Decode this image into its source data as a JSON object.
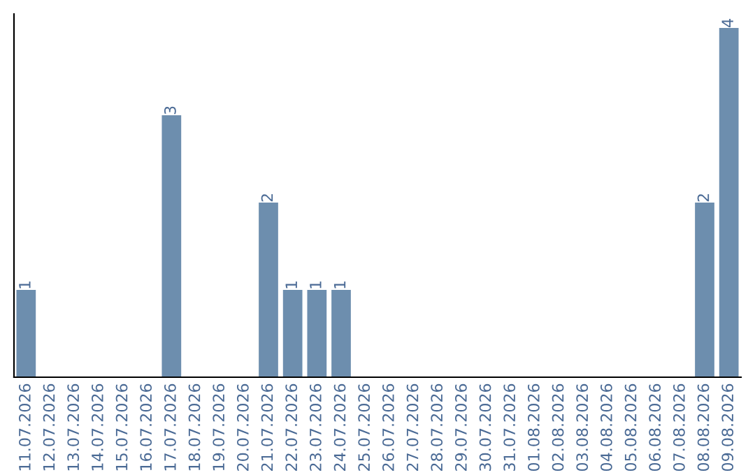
{
  "chart_data": {
    "type": "bar",
    "categories": [
      "11.07.2026",
      "12.07.2026",
      "13.07.2026",
      "14.07.2026",
      "15.07.2026",
      "16.07.2026",
      "17.07.2026",
      "18.07.2026",
      "19.07.2026",
      "20.07.2026",
      "21.07.2026",
      "22.07.2026",
      "23.07.2026",
      "24.07.2026",
      "25.07.2026",
      "26.07.2026",
      "27.07.2026",
      "28.07.2026",
      "29.07.2026",
      "30.07.2026",
      "31.07.2026",
      "01.08.2026",
      "02.08.2026",
      "03.08.2026",
      "04.08.2026",
      "05.08.2026",
      "06.08.2026",
      "07.08.2026",
      "08.08.2026",
      "09.08.2026"
    ],
    "values": [
      1,
      0,
      0,
      0,
      0,
      0,
      3,
      0,
      0,
      0,
      2,
      1,
      1,
      1,
      0,
      0,
      0,
      0,
      0,
      0,
      0,
      0,
      0,
      0,
      0,
      0,
      0,
      0,
      2,
      4
    ],
    "value_labels": [
      "1",
      null,
      null,
      null,
      null,
      null,
      "3",
      null,
      null,
      null,
      "2",
      "1",
      "1",
      "1",
      null,
      null,
      null,
      null,
      null,
      null,
      null,
      null,
      null,
      null,
      null,
      null,
      null,
      null,
      "2",
      "4"
    ],
    "color": "#6d8eae",
    "ylim": [
      0,
      4.16
    ],
    "tick_labels": "x",
    "grid": false,
    "legend": false
  }
}
